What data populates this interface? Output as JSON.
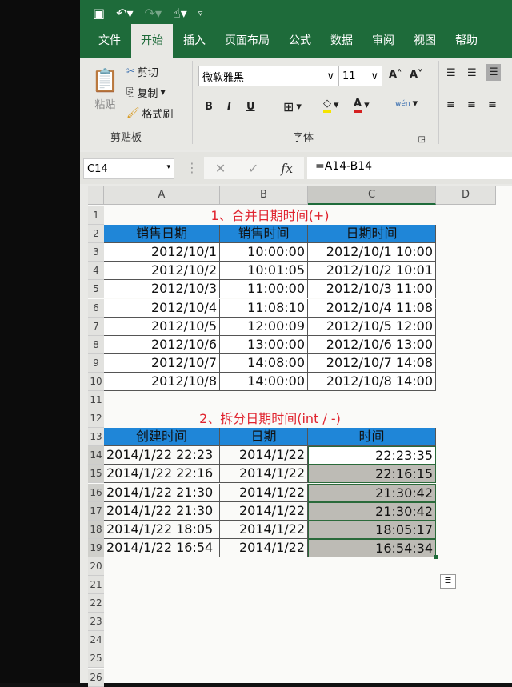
{
  "quick_access": {
    "save_icon": "save-icon",
    "undo_icon": "undo-icon",
    "redo_icon": "redo-icon",
    "touch_icon": "touch-mode-icon",
    "customize_icon": "customize-icon"
  },
  "tabs": [
    "文件",
    "开始",
    "插入",
    "页面布局",
    "公式",
    "数据",
    "审阅",
    "视图",
    "帮助"
  ],
  "active_tab": "开始",
  "clipboard": {
    "paste": "粘贴",
    "cut": "剪切",
    "copy": "复制",
    "format_painter": "格式刷",
    "label": "剪贴板"
  },
  "font": {
    "name": "微软雅黑",
    "size": "11",
    "label": "字体",
    "bold": "B",
    "italic": "I",
    "underline": "U",
    "phonetic": "wén",
    "font_color_letter": "A"
  },
  "colors": {
    "ribbon": "#1e6b3a",
    "header_fill": "#1f86d8",
    "title_red": "#e0242f",
    "fill_yellow": "#f5e400",
    "font_red": "#d42020"
  },
  "formula_bar": {
    "name_box": "C14",
    "fx": "fx",
    "formula": "=A14-B14"
  },
  "columns": [
    "A",
    "B",
    "C",
    "D"
  ],
  "rows": [
    "1",
    "2",
    "3",
    "4",
    "5",
    "6",
    "7",
    "8",
    "9",
    "10",
    "11",
    "12",
    "13",
    "14",
    "15",
    "16",
    "17",
    "18",
    "19",
    "20",
    "21",
    "22",
    "23",
    "24",
    "25",
    "26"
  ],
  "table1": {
    "title": "1、合并日期时间(+)",
    "headers": [
      "销售日期",
      "销售时间",
      "日期时间"
    ],
    "rows": [
      [
        "2012/10/1",
        "10:00:00",
        "2012/10/1 10:00"
      ],
      [
        "2012/10/2",
        "10:01:05",
        "2012/10/2 10:01"
      ],
      [
        "2012/10/3",
        "11:00:00",
        "2012/10/3 11:00"
      ],
      [
        "2012/10/4",
        "11:08:10",
        "2012/10/4 11:08"
      ],
      [
        "2012/10/5",
        "12:00:09",
        "2012/10/5 12:00"
      ],
      [
        "2012/10/6",
        "13:00:00",
        "2012/10/6 13:00"
      ],
      [
        "2012/10/7",
        "14:08:00",
        "2012/10/7 14:08"
      ],
      [
        "2012/10/8",
        "14:00:00",
        "2012/10/8 14:00"
      ]
    ]
  },
  "table2": {
    "title": "2、拆分日期时间(int /  -)",
    "headers": [
      "创建时间",
      "日期",
      "时间"
    ],
    "rows": [
      [
        "2014/1/22 22:23",
        "2014/1/22",
        "22:23:35"
      ],
      [
        "2014/1/22 22:16",
        "2014/1/22",
        "22:16:15"
      ],
      [
        "2014/1/22 21:30",
        "2014/1/22",
        "21:30:42"
      ],
      [
        "2014/1/22 21:30",
        "2014/1/22",
        "21:30:42"
      ],
      [
        "2014/1/22 18:05",
        "2014/1/22",
        "18:05:17"
      ],
      [
        "2014/1/22 16:54",
        "2014/1/22",
        "16:54:34"
      ]
    ]
  }
}
